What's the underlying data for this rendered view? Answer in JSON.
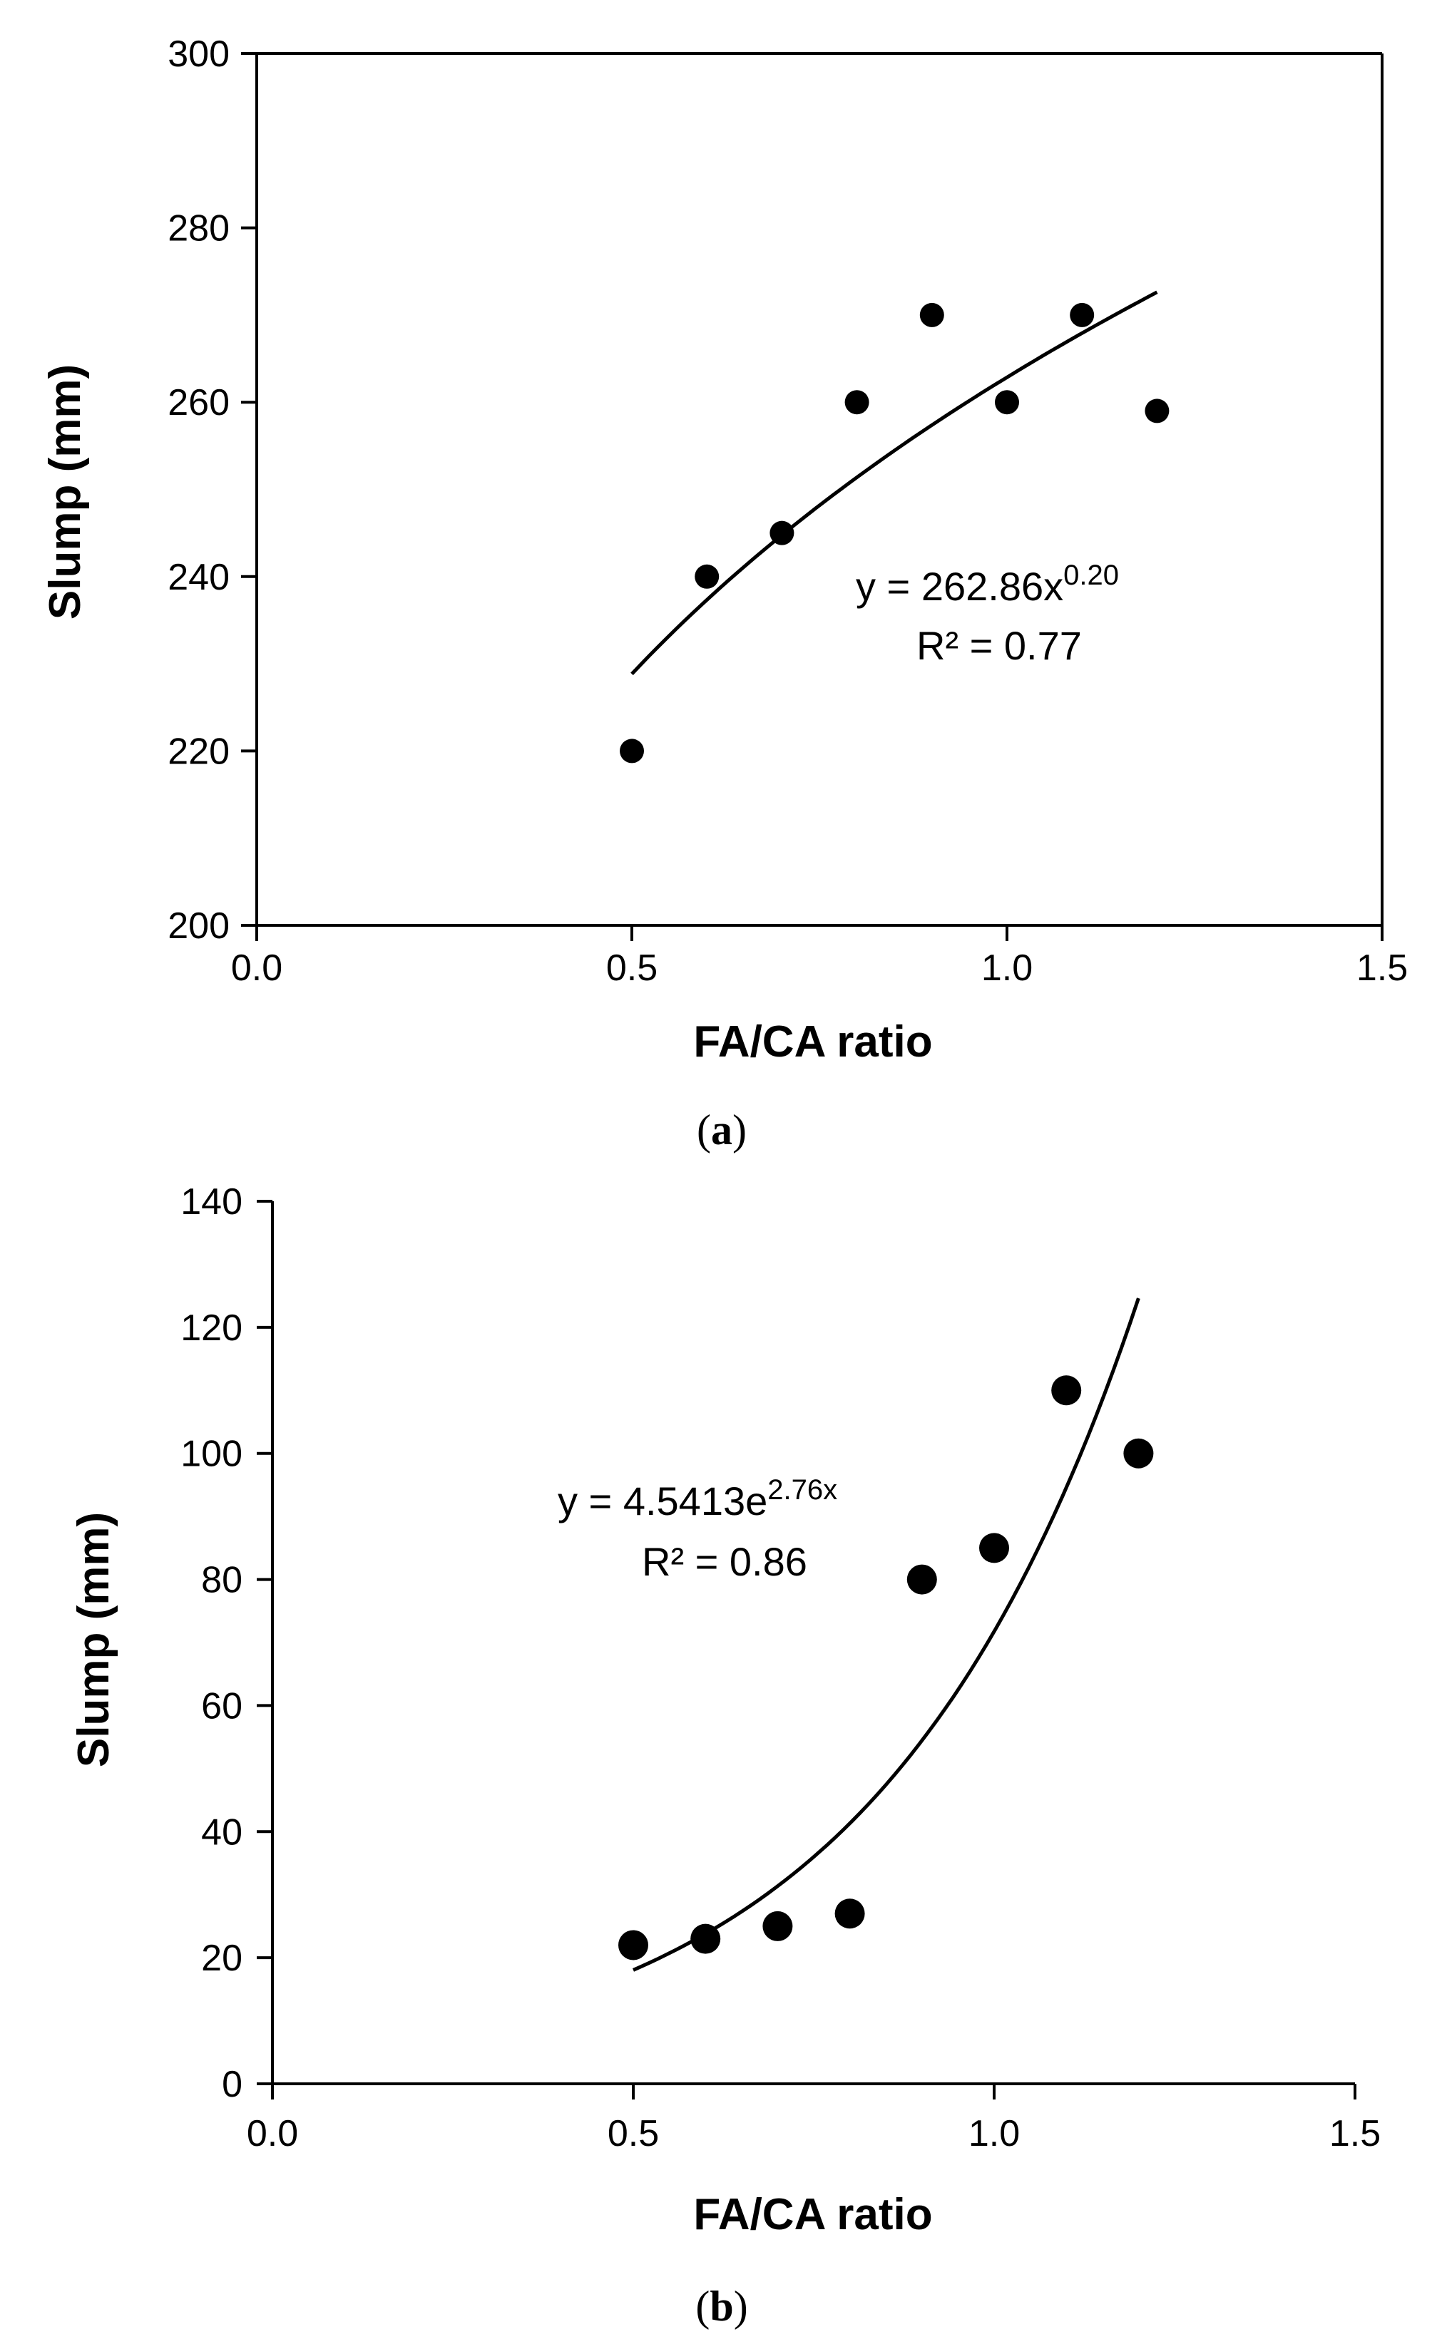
{
  "chart_data": [
    {
      "type": "scatter",
      "panel_label": "a",
      "xlabel": "FA/CA ratio",
      "ylabel": "Slump (mm)",
      "xlim": [
        0.0,
        1.5
      ],
      "ylim": [
        200,
        300
      ],
      "xticks": [
        0.0,
        0.5,
        1.0,
        1.5
      ],
      "xtick_labels": [
        "0.0",
        "0.5",
        "1.0",
        "1.5"
      ],
      "yticks": [
        200,
        220,
        240,
        260,
        280,
        300
      ],
      "ytick_labels": [
        "200",
        "220",
        "240",
        "260",
        "280",
        "300"
      ],
      "x": [
        0.5,
        0.6,
        0.7,
        0.8,
        0.9,
        1.0,
        1.1,
        1.2
      ],
      "y": [
        220,
        240,
        245,
        260,
        270,
        260,
        270,
        259
      ],
      "trendline": {
        "kind": "power",
        "a": 262.86,
        "b": 0.2,
        "x_range": [
          0.5,
          1.2
        ]
      },
      "equation": {
        "prefix": "y = 262.86x",
        "exponent": "0.20",
        "r2": "R² = 0.77"
      },
      "grid": false
    },
    {
      "type": "scatter",
      "panel_label": "b",
      "xlabel": "FA/CA ratio",
      "ylabel": "Slump (mm)",
      "xlim": [
        0.0,
        1.5
      ],
      "ylim": [
        0,
        140
      ],
      "xticks": [
        0.0,
        0.5,
        1.0,
        1.5
      ],
      "xtick_labels": [
        "0.0",
        "0.5",
        "1.0",
        "1.5"
      ],
      "yticks": [
        0,
        20,
        40,
        60,
        80,
        100,
        120,
        140
      ],
      "ytick_labels": [
        "0",
        "20",
        "40",
        "60",
        "80",
        "100",
        "120",
        "140"
      ],
      "x": [
        0.5,
        0.6,
        0.7,
        0.8,
        0.9,
        1.0,
        1.1,
        1.2
      ],
      "y": [
        22,
        23,
        25,
        27,
        80,
        85,
        110,
        100
      ],
      "trendline": {
        "kind": "exponential",
        "a": 4.5413,
        "b": 2.76,
        "x_range": [
          0.5,
          1.2
        ]
      },
      "equation": {
        "prefix": "y = 4.5413e",
        "exponent": "2.76x",
        "r2": "R² = 0.86"
      },
      "grid": false
    }
  ]
}
